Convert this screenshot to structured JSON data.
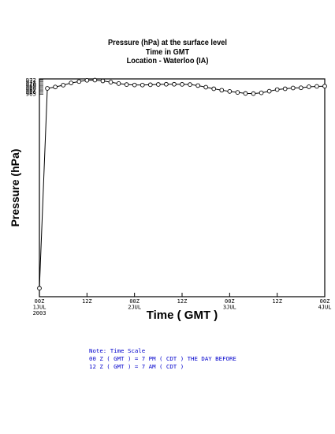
{
  "chart_data": {
    "type": "line",
    "title": "Pressure (hPa) at the surface level",
    "subtitle": [
      "Time in GMT",
      "Location - Waterloo (IA)"
    ],
    "xlabel": "Time ( GMT )",
    "ylabel": "Pressure (hPa)",
    "xlim": [
      0,
      72
    ],
    "ylim": [
      864.5,
      972.5
    ],
    "yticks": [
      965,
      966,
      967,
      968,
      969,
      970,
      971,
      972
    ],
    "xticks": [
      {
        "x": 0,
        "label": [
          "00Z",
          "1JUL",
          "2003"
        ]
      },
      {
        "x": 12,
        "label": [
          "12Z"
        ]
      },
      {
        "x": 24,
        "label": [
          "00Z",
          "2JUL"
        ]
      },
      {
        "x": 36,
        "label": [
          "12Z"
        ]
      },
      {
        "x": 48,
        "label": [
          "00Z",
          "3JUL"
        ]
      },
      {
        "x": 60,
        "label": [
          "12Z"
        ]
      },
      {
        "x": 72,
        "label": [
          "00Z",
          "4JUL"
        ]
      }
    ],
    "x": [
      0,
      2,
      4,
      6,
      8,
      10,
      12,
      14,
      16,
      18,
      20,
      22,
      24,
      26,
      28,
      30,
      32,
      34,
      36,
      38,
      40,
      42,
      44,
      46,
      48,
      50,
      52,
      54,
      56,
      58,
      60,
      62,
      64,
      66,
      68,
      70,
      72
    ],
    "values": [
      868.7,
      967.8,
      968.5,
      969.4,
      970.5,
      971.2,
      971.8,
      971.9,
      971.5,
      970.9,
      970.2,
      969.7,
      969.5,
      969.45,
      969.6,
      969.75,
      969.85,
      969.85,
      969.8,
      969.7,
      969.2,
      968.4,
      967.6,
      966.9,
      966.3,
      965.8,
      965.3,
      965.2,
      965.6,
      966.4,
      967.2,
      967.6,
      968.0,
      968.1,
      968.6,
      968.8,
      968.9
    ],
    "markers": "open-circle",
    "grid": false
  },
  "note": {
    "line1": "Note: Time Scale",
    "line2": "00 Z ( GMT ) = 7 PM ( CDT ) THE DAY BEFORE",
    "line3": "12 Z ( GMT ) = 7 AM ( CDT )"
  }
}
